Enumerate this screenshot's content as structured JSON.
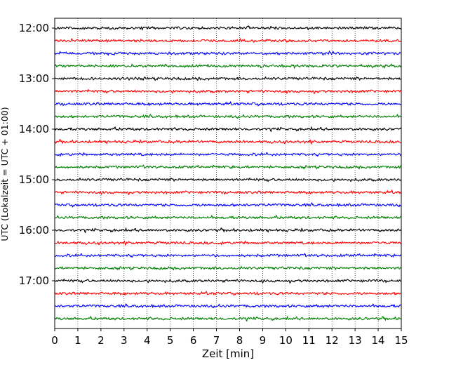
{
  "chart_data": {
    "type": "line",
    "title": "",
    "xlabel": "Zeit  [min]",
    "ylabel": "UTC (Lokalzeit = UTC + 01:00)",
    "xlim": [
      0,
      15
    ],
    "xticks": [
      "0",
      "1",
      "2",
      "3",
      "4",
      "5",
      "6",
      "7",
      "8",
      "9",
      "10",
      "11",
      "12",
      "13",
      "14",
      "15"
    ],
    "yticks": [
      "12:00",
      "13:00",
      "14:00",
      "15:00",
      "16:00",
      "17:00"
    ],
    "ytick_minutes": [
      0,
      60,
      120,
      180,
      240,
      300
    ],
    "grid": "vertical dotted at each minute",
    "line_minutes_start": 0,
    "line_interval_minutes": 15,
    "line_count": 24,
    "trace_colors": [
      "#000000",
      "#ff0000",
      "#0000ff",
      "#008000"
    ],
    "trace_amplitude_note": "seismic noise traces, small random amplitude"
  }
}
